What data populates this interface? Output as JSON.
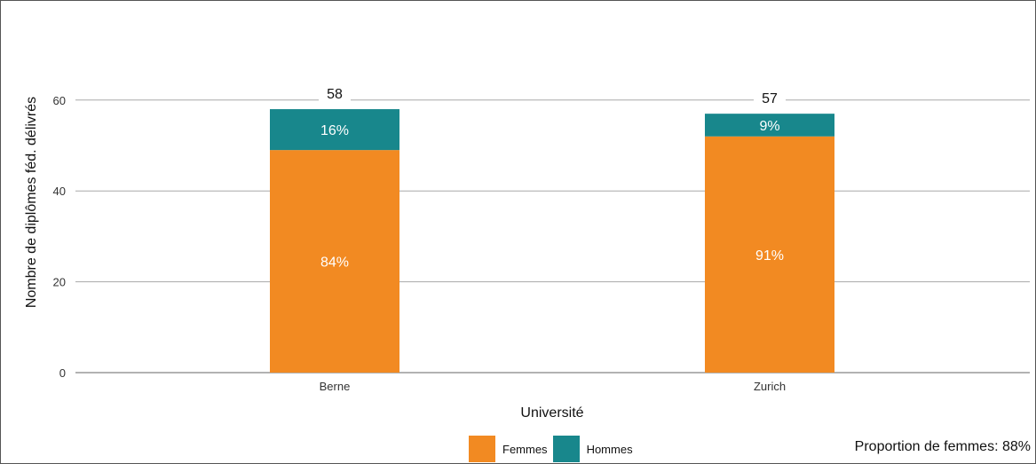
{
  "chart_data": {
    "type": "bar",
    "stacked": true,
    "categories": [
      "Berne",
      "Zurich"
    ],
    "series": [
      {
        "name": "Femmes",
        "values": [
          49,
          52
        ],
        "labels": [
          "84%",
          "91%"
        ],
        "color": "#F28A22"
      },
      {
        "name": "Hommes",
        "values": [
          9,
          5
        ],
        "labels": [
          "16%",
          "9%"
        ],
        "color": "#18878C"
      }
    ],
    "totals": [
      58,
      57
    ],
    "xlabel": "Université",
    "ylabel": "Nombre de diplômes féd. délivrés",
    "ylim": [
      0,
      70
    ],
    "yticks": [
      0,
      20,
      40,
      60
    ],
    "grid": true,
    "legend": "bottom"
  },
  "footnote": "Proportion de femmes: 88%"
}
